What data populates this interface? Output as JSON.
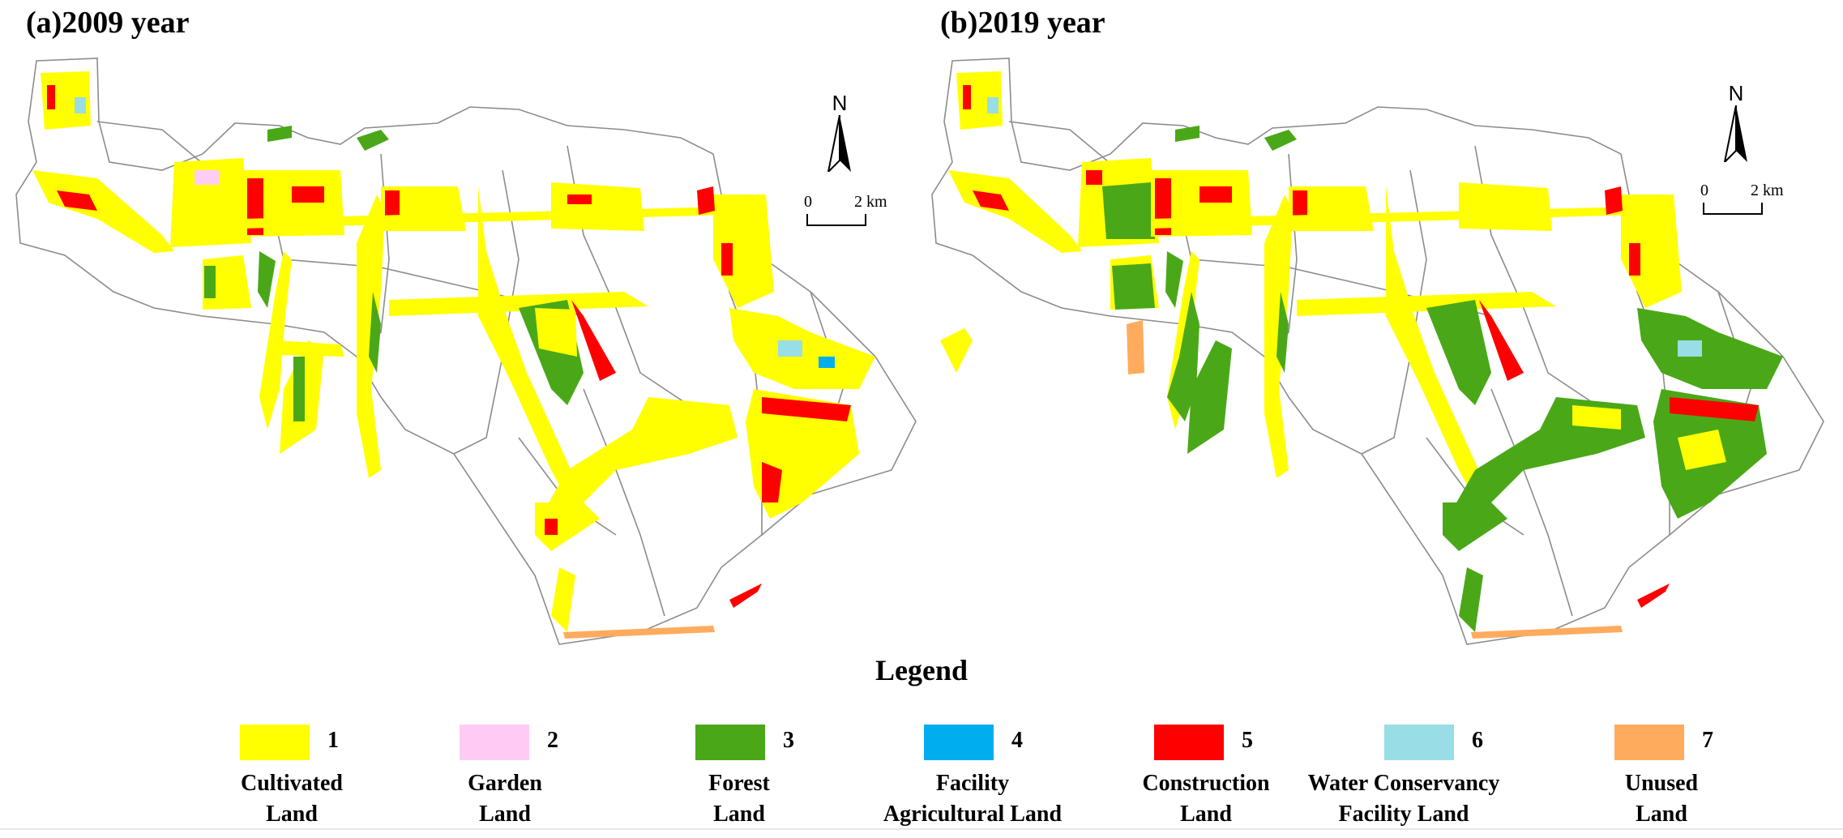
{
  "panels": [
    {
      "title": "(a)2009 year"
    },
    {
      "title": "(b)2019 year"
    }
  ],
  "north_label": "N",
  "scale": {
    "zero": "0",
    "max": "2 km"
  },
  "legend": {
    "title": "Legend",
    "items": [
      {
        "code": "1",
        "line1": "Cultivated",
        "line2": "Land",
        "color": "#ffff00"
      },
      {
        "code": "2",
        "line1": "Garden",
        "line2": "Land",
        "color": "#ffccf5"
      },
      {
        "code": "3",
        "line1": "Forest",
        "line2": "Land",
        "color": "#4aa818"
      },
      {
        "code": "4",
        "line1": "Facility",
        "line2": "Agricultural Land",
        "color": "#00aef0"
      },
      {
        "code": "5",
        "line1": "Construction",
        "line2": "Land",
        "color": "#ff0000"
      },
      {
        "code": "6",
        "line1": "Water Conservancy",
        "line2": "Facility Land",
        "color": "#99dde6"
      },
      {
        "code": "7",
        "line1": "Unused",
        "line2": "Land",
        "color": "#ffab5e"
      }
    ]
  },
  "colors": {
    "boundary": "#8c8c8c",
    "cultivated": "#ffff00",
    "garden": "#ffccf5",
    "forest": "#4aa818",
    "facility_agri": "#00aef0",
    "construction": "#ff0000",
    "water": "#99dde6",
    "unused": "#ffab5e"
  }
}
